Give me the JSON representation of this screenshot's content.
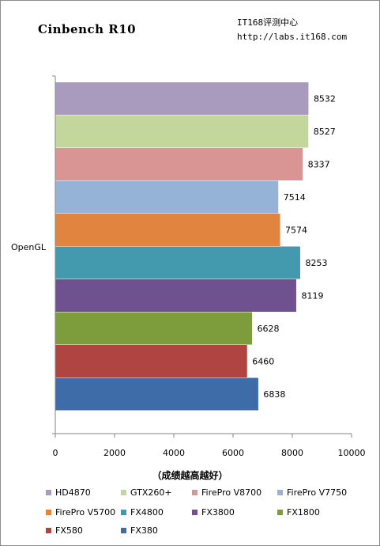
{
  "header": {
    "title": "Cinbench R10",
    "brand_line1": "IT168评测中心",
    "brand_line2": "http://labs.it168.com"
  },
  "chart_data": {
    "type": "bar",
    "orientation": "horizontal",
    "title": "Cinbench R10",
    "categories": [
      "OpenGL"
    ],
    "series": [
      {
        "name": "HD4870",
        "values": [
          8532
        ],
        "color": "#a99bbd"
      },
      {
        "name": "GTX260+",
        "values": [
          8527
        ],
        "color": "#c3d69b"
      },
      {
        "name": "FirePro V8700",
        "values": [
          8337
        ],
        "color": "#d99594"
      },
      {
        "name": "FirePro V7750",
        "values": [
          7514
        ],
        "color": "#95b3d7"
      },
      {
        "name": "FirePro V5700",
        "values": [
          7574
        ],
        "color": "#e0843f"
      },
      {
        "name": "FX4800",
        "values": [
          8253
        ],
        "color": "#4399ad"
      },
      {
        "name": "FX3800",
        "values": [
          8119
        ],
        "color": "#6f5190"
      },
      {
        "name": "FX1800",
        "values": [
          6628
        ],
        "color": "#7d9c3c"
      },
      {
        "name": "FX580",
        "values": [
          6460
        ],
        "color": "#b04441"
      },
      {
        "name": "FX380",
        "values": [
          6838
        ],
        "color": "#3e6ca8"
      }
    ],
    "xlim": [
      0,
      10000
    ],
    "xticks": [
      0,
      2000,
      4000,
      6000,
      8000,
      10000
    ],
    "xlabel": "（成绩越高越好）",
    "ylabel": "",
    "grid": false,
    "legend_position": "bottom"
  }
}
